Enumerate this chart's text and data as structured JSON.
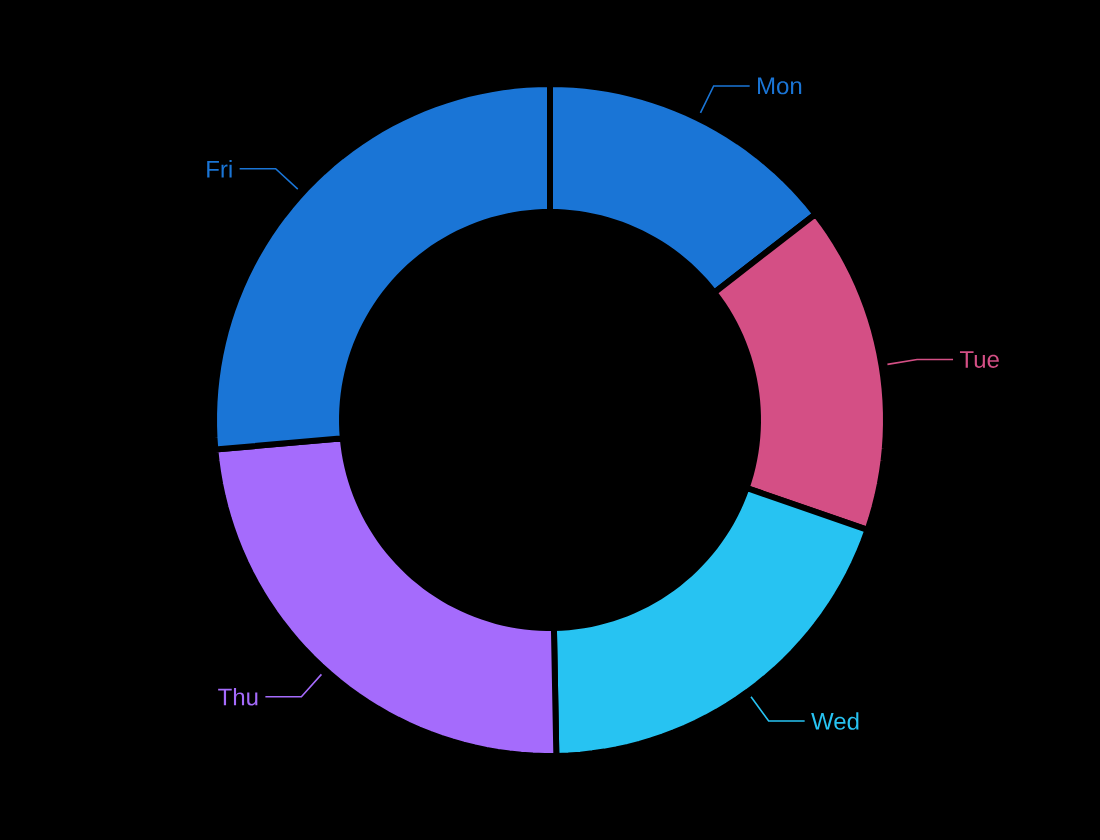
{
  "chart_data": {
    "type": "donut",
    "categories": [
      "Mon",
      "Tue",
      "Wed",
      "Thu",
      "Fri"
    ],
    "values": [
      14.5,
      15.8,
      19.4,
      23.9,
      26.4
    ],
    "colors": [
      "#1a75d6",
      "#d44f85",
      "#27c3f2",
      "#a56bfc",
      "#1a75d6"
    ]
  }
}
